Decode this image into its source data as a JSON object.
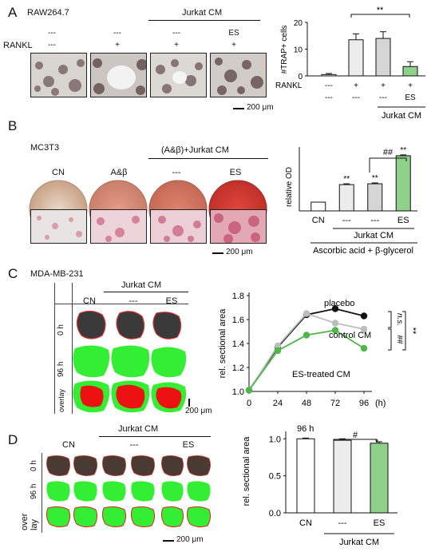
{
  "panelA": {
    "letter": "A",
    "cellLine": "RAW264.7",
    "rowLabel": "RANKL",
    "groupLabel": "Jurkat CM",
    "topRow": [
      "---",
      "---",
      "---",
      "ES"
    ],
    "rankRow": [
      "---",
      "+",
      "+",
      "+"
    ],
    "scaleBar": "200 μm",
    "chart": {
      "ylabel": "#TRAP+ cells",
      "yticks": [
        "0",
        "10",
        "20"
      ],
      "rankRowLabel": "RANKL",
      "rankRow": [
        "---",
        "+",
        "+",
        "+"
      ],
      "esRow": [
        "---",
        "---",
        "---",
        "ES"
      ],
      "groupLabel": "Jurkat CM",
      "sig": "**"
    }
  },
  "panelB": {
    "letter": "B",
    "cellLine": "MC3T3",
    "groupLabel": "(A&β)+Jurkat CM",
    "colLabels": [
      "CN",
      "A&β",
      "---",
      "ES"
    ],
    "scaleBar": "200 μm",
    "chart": {
      "ylabel": "relative OD",
      "xlabels": [
        "CN",
        "---",
        "---",
        "ES"
      ],
      "groupLabel": "Jurkat CM",
      "treatment": "Ascorbic acid + β-glycerol",
      "stars": [
        "",
        "**",
        "**",
        "**"
      ],
      "hash": "##"
    }
  },
  "panelC": {
    "letter": "C",
    "cellLine": "MDA-MB-231",
    "groupLabel": "Jurkat CM",
    "colLabels": [
      "CN",
      "---",
      "ES"
    ],
    "rowLabels": [
      "0 h",
      "96 h",
      "overlay"
    ],
    "scaleBar": "200 μm",
    "chart": {
      "ylabel": "rel. sectional area",
      "xunit": "(h)",
      "yticks": [
        "1.0",
        "1.2",
        "1.4",
        "1.6",
        "1.8"
      ],
      "xticks": [
        "0",
        "24",
        "48",
        "72",
        "96"
      ],
      "labels": [
        "placebo",
        "control CM",
        "ES-treated CM"
      ],
      "ns": "n.s.",
      "hash": "##",
      "stars": "**"
    }
  },
  "panelD": {
    "letter": "D",
    "groupLabel": "Jurkat CM",
    "colLabels": [
      "CN",
      "---",
      "ES"
    ],
    "rowLabels": [
      "0 h",
      "96 h",
      "over",
      "lay"
    ],
    "scaleBar": "200 μm",
    "chart": {
      "ylabel": "rel. sectional area",
      "timeLabel": "96 h",
      "yticks": [
        "0.0",
        "0.5",
        "1.0"
      ],
      "xlabels": [
        "CN",
        "---",
        "ES"
      ],
      "groupLabel": "Jurkat CM",
      "hash": "#",
      "star": "*"
    }
  },
  "chart_data": [
    {
      "type": "bar",
      "panel": "A",
      "ylabel": "#TRAP+ cells",
      "ylim": [
        0,
        20
      ],
      "values": [
        0.5,
        13.5,
        14,
        3.5
      ],
      "errors": [
        0.4,
        2.2,
        2.5,
        1.8
      ],
      "colors": [
        "#ffffff",
        "#ececec",
        "#d5d5d5",
        "#8fd18a"
      ]
    },
    {
      "type": "bar",
      "panel": "B",
      "ylabel": "relative OD",
      "ylim": [
        0,
        7.3
      ],
      "values": [
        1.0,
        3.0,
        3.1,
        6.3
      ],
      "errors": [
        0,
        0.1,
        0.1,
        0.1
      ],
      "colors": [
        "#ffffff",
        "#ececec",
        "#d5d5d5",
        "#8fd18a"
      ]
    },
    {
      "type": "line",
      "panel": "C",
      "ylabel": "rel. sectional area",
      "xlim": [
        0,
        96
      ],
      "ylim": [
        1.0,
        1.8
      ],
      "x": [
        0,
        24,
        48,
        72,
        96
      ],
      "series": [
        {
          "name": "placebo",
          "values": [
            1.01,
            1.37,
            1.64,
            1.69,
            1.63
          ],
          "color": "#111111"
        },
        {
          "name": "control CM",
          "values": [
            1.01,
            1.38,
            1.65,
            1.57,
            1.52
          ],
          "color": "#bdbdbd"
        },
        {
          "name": "ES-treated CM",
          "values": [
            1.01,
            1.34,
            1.47,
            1.51,
            1.36
          ],
          "color": "#4fb74a"
        }
      ]
    },
    {
      "type": "bar",
      "panel": "D",
      "ylabel": "rel. sectional area",
      "ylim": [
        0,
        1.1
      ],
      "values": [
        1.0,
        0.98,
        0.94
      ],
      "errors": [
        0.01,
        0.02,
        0.02
      ],
      "colors": [
        "#ffffff",
        "#ececec",
        "#8fd18a"
      ]
    }
  ]
}
